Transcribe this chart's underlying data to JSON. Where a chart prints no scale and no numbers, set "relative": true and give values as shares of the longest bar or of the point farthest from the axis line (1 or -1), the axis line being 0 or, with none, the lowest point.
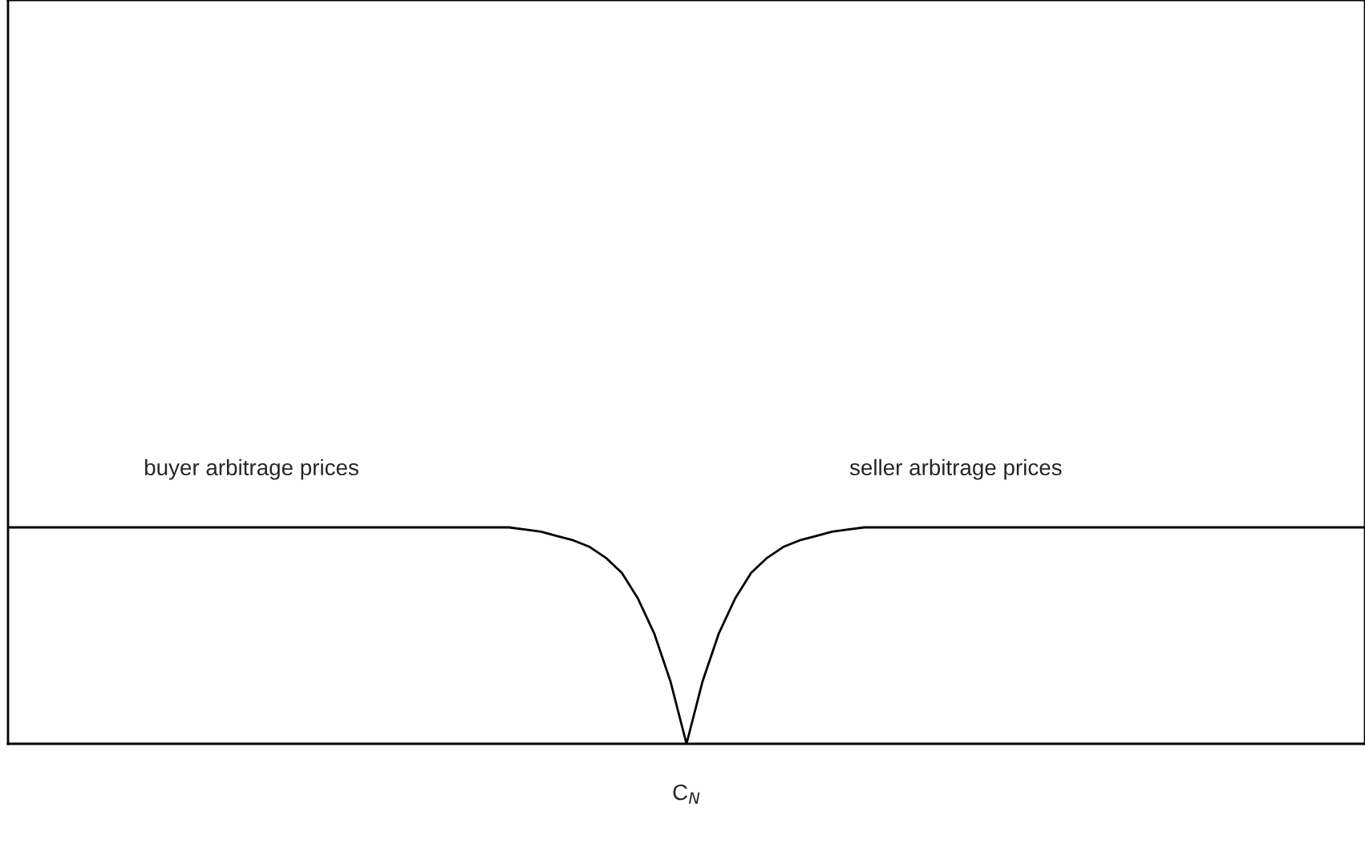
{
  "chart_data": {
    "type": "line",
    "relative": true,
    "color": "#000000",
    "categories": [
      null,
      null,
      null,
      null,
      null,
      null,
      null,
      null,
      null,
      null,
      null,
      null,
      null,
      null,
      null,
      null,
      null,
      null,
      null,
      null,
      null,
      null,
      null,
      null,
      null,
      null,
      null,
      null,
      null,
      null,
      null,
      null,
      null,
      null,
      null,
      null,
      null,
      null,
      null,
      null,
      null,
      null,
      null,
      null,
      null,
      null,
      null,
      null,
      null,
      null,
      null,
      null,
      null,
      null,
      null,
      null,
      null,
      null,
      null,
      null,
      null,
      null,
      null,
      null,
      null,
      null,
      null,
      null,
      null,
      null,
      null,
      null,
      null,
      null,
      null,
      null,
      null,
      null,
      null,
      null,
      null,
      null,
      null,
      null,
      null
    ],
    "values": [
      1,
      1,
      1,
      1,
      1,
      1,
      1,
      1,
      1,
      1,
      1,
      1,
      1,
      1,
      1,
      1,
      1,
      1,
      1,
      1,
      1,
      1,
      1,
      1,
      1,
      1,
      1,
      1,
      1,
      1,
      1,
      1,
      0.99,
      0.98,
      0.96,
      0.94,
      0.91,
      0.86,
      0.79,
      0.67,
      0.51,
      0.29,
      0,
      0.29,
      0.51,
      0.67,
      0.79,
      0.86,
      0.91,
      0.94,
      0.96,
      0.98,
      0.99,
      1,
      1,
      1,
      1,
      1,
      1,
      1,
      1,
      1,
      1,
      1,
      1,
      1,
      1,
      1,
      1,
      1,
      1,
      1,
      1,
      1,
      1,
      1,
      1,
      1,
      1,
      1,
      1,
      1,
      1,
      1,
      1
    ],
    "annotations": [
      "buyer arbitrage prices",
      "seller arbitrage prices",
      "C$_{N}$"
    ],
    "grid": false,
    "legend": false
  }
}
